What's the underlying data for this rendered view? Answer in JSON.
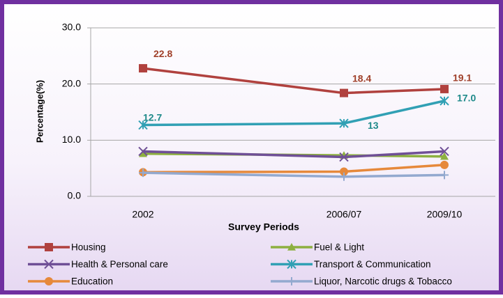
{
  "chart_data": {
    "type": "line",
    "x_label": "Survey Periods",
    "y_label": "Percentage(%)",
    "categories": [
      "2002",
      "2006/07",
      "2009/10"
    ],
    "ylim": [
      0,
      30
    ],
    "yticks": [
      {
        "value": 0,
        "label": "0.0"
      },
      {
        "value": 10,
        "label": "10.0"
      },
      {
        "value": 20,
        "label": "20.0"
      },
      {
        "value": 30,
        "label": "30.0"
      }
    ],
    "grid": true,
    "series": [
      {
        "name": "Housing",
        "color": "#b0413e",
        "marker": "square",
        "values": [
          22.8,
          18.4,
          19.1
        ],
        "value_labels": [
          "22.8",
          "18.4",
          "19.1"
        ]
      },
      {
        "name": "Fuel & Light",
        "color": "#8db040",
        "marker": "triangle",
        "values": [
          7.6,
          7.3,
          7.1
        ]
      },
      {
        "name": "Health & Personal care",
        "color": "#6f4f96",
        "marker": "x",
        "values": [
          8.0,
          7.0,
          8.0
        ]
      },
      {
        "name": "Transport & Communication",
        "color": "#31a0b4",
        "marker": "asterisk",
        "values": [
          12.7,
          13,
          17.0
        ],
        "value_labels": [
          "12.7",
          "13",
          "17.0"
        ]
      },
      {
        "name": "Education",
        "color": "#e6893b",
        "marker": "circle",
        "values": [
          4.3,
          4.4,
          5.6
        ]
      },
      {
        "name": "Liquor, Narcotic drugs & Tobacco",
        "color": "#93a9cf",
        "marker": "plus",
        "values": [
          4.2,
          3.5,
          3.8
        ]
      }
    ]
  }
}
